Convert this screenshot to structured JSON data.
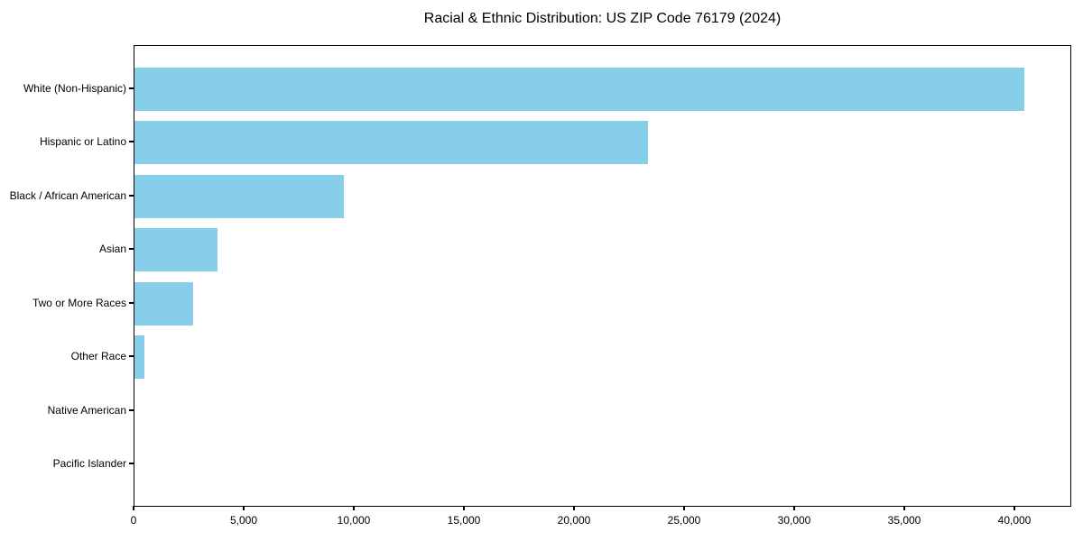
{
  "figure": {
    "title": "Racial & Ethnic Distribution: US ZIP Code 76179 (2024)"
  },
  "chart_data": {
    "type": "bar",
    "orientation": "horizontal",
    "title": "Racial & Ethnic Distribution: US ZIP Code 76179 (2024)",
    "categories": [
      "White (Non-Hispanic)",
      "Hispanic or Latino",
      "Black / African American",
      "Asian",
      "Two or More Races",
      "Other Race",
      "Native American",
      "Pacific Islander"
    ],
    "values": [
      40400,
      23300,
      9500,
      3750,
      2650,
      450,
      0,
      0
    ],
    "xlabel": "",
    "ylabel": "",
    "xlim": [
      0,
      42500
    ],
    "xticks": [
      0,
      5000,
      10000,
      15000,
      20000,
      25000,
      30000,
      35000,
      40000
    ],
    "xtick_labels": [
      "0",
      "5,000",
      "10,000",
      "15,000",
      "20,000",
      "25,000",
      "30,000",
      "35,000",
      "40,000"
    ],
    "bar_color": "#87CEEB",
    "axis_color": "#000000",
    "grid": false,
    "legend_position": "none"
  }
}
